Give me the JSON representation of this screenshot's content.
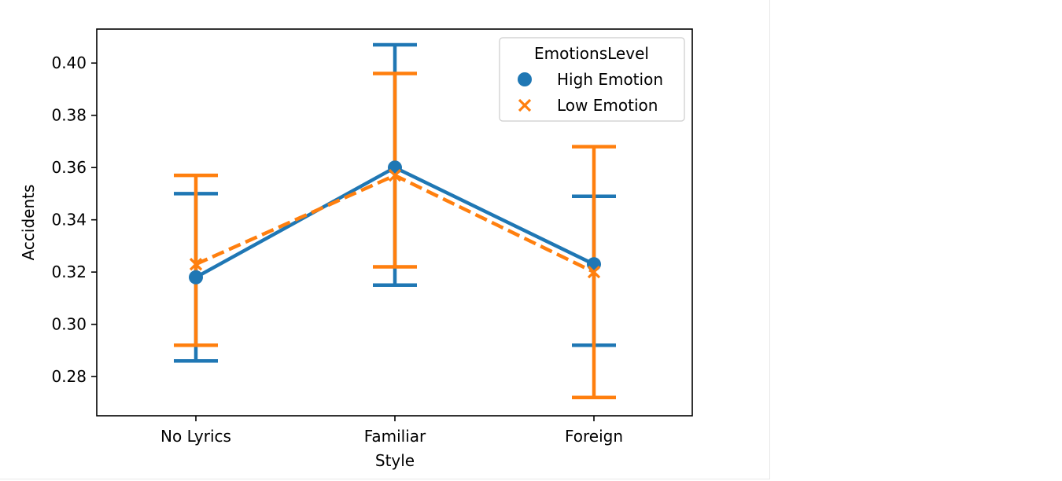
{
  "chart_data": {
    "type": "line",
    "subtype": "point-plot-with-error-bars",
    "categories": [
      "No Lyrics",
      "Familiar",
      "Foreign"
    ],
    "xlabel": "Style",
    "ylabel": "Accidents",
    "ylim": [
      0.265,
      0.413
    ],
    "yticks": [
      0.28,
      0.3,
      0.32,
      0.34,
      0.36,
      0.38,
      0.4
    ],
    "ytick_labels": [
      "0.28",
      "0.30",
      "0.32",
      "0.34",
      "0.36",
      "0.38",
      "0.40"
    ],
    "grid": false,
    "legend": {
      "title": "EmotionsLevel",
      "placement": "top-right"
    },
    "series": [
      {
        "name": "High Emotion",
        "color": "#1f77b4",
        "marker": "circle",
        "linestyle": "solid",
        "values": [
          0.318,
          0.36,
          0.323
        ],
        "ci_low": [
          0.286,
          0.315,
          0.292
        ],
        "ci_high": [
          0.35,
          0.407,
          0.349
        ]
      },
      {
        "name": "Low Emotion",
        "color": "#ff7f0e",
        "marker": "x",
        "linestyle": "dashed",
        "values": [
          0.323,
          0.357,
          0.32
        ],
        "ci_low": [
          0.292,
          0.322,
          0.272
        ],
        "ci_high": [
          0.357,
          0.396,
          0.368
        ]
      }
    ]
  }
}
